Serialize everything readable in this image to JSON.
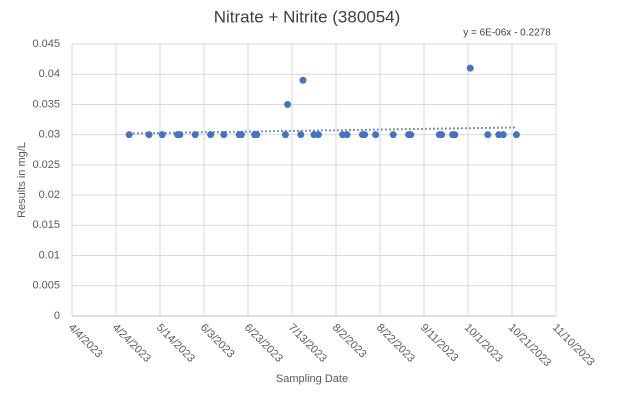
{
  "chart_data": {
    "type": "scatter",
    "title": "Nitrate + Nitrite (380054)",
    "x_label": "Sampling Date",
    "y_label": "Results in mg/L",
    "trendline_label": "y = 6E-06x - 0.2278",
    "trendline": "linear",
    "grid": true,
    "xlim": [
      "4/4/2023",
      "11/10/2023"
    ],
    "xticks": [
      "4/4/2023",
      "4/24/2023",
      "5/14/2023",
      "6/3/2023",
      "6/23/2023",
      "7/13/2023",
      "8/2/2023",
      "8/22/2023",
      "9/11/2023",
      "10/1/2023",
      "10/21/2023",
      "11/10/2023"
    ],
    "ylim": [
      0,
      0.045
    ],
    "yticks": [
      0,
      0.005,
      0.01,
      0.015,
      0.02,
      0.025,
      0.03,
      0.035,
      0.04,
      0.045
    ],
    "series": [
      {
        "color": "#4472c4",
        "x": [
          "4/30/2023",
          "5/9/2023",
          "5/15/2023",
          "5/22/2023",
          "5/23/2023",
          "5/30/2023",
          "6/6/2023",
          "6/12/2023",
          "6/19/2023",
          "6/20/2023",
          "6/26/2023",
          "6/27/2023",
          "7/10/2023",
          "7/11/2023",
          "7/17/2023",
          "7/18/2023",
          "7/23/2023",
          "7/25/2023",
          "8/5/2023",
          "8/7/2023",
          "8/14/2023",
          "8/15/2023",
          "8/20/2023",
          "8/28/2023",
          "9/4/2023",
          "9/5/2023",
          "9/18/2023",
          "9/19/2023",
          "9/24/2023",
          "9/25/2023",
          "10/2/2023",
          "10/10/2023",
          "10/15/2023",
          "10/17/2023",
          "10/23/2023"
        ],
        "values": [
          0.03,
          0.03,
          0.03,
          0.03,
          0.03,
          0.03,
          0.03,
          0.03,
          0.03,
          0.03,
          0.03,
          0.03,
          0.03,
          0.035,
          0.03,
          0.039,
          0.03,
          0.03,
          0.03,
          0.03,
          0.03,
          0.03,
          0.03,
          0.03,
          0.03,
          0.03,
          0.03,
          0.03,
          0.03,
          0.03,
          0.041,
          0.03,
          0.03,
          0.03,
          0.03
        ]
      }
    ]
  }
}
